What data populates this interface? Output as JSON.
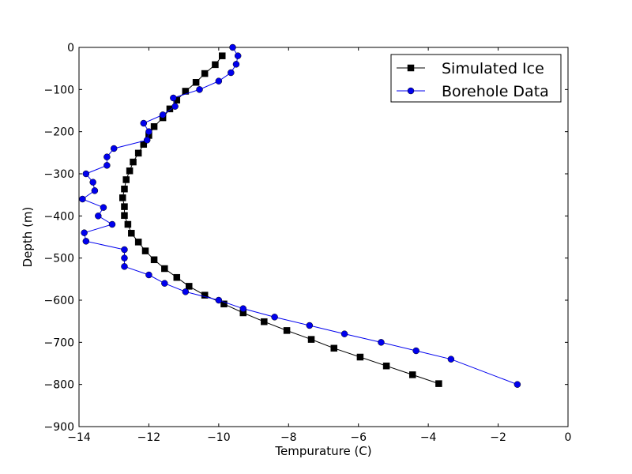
{
  "chart_data": {
    "type": "line",
    "xlabel": "Tempurature (C)",
    "ylabel": "Depth (m)",
    "xlim": [
      -14,
      0
    ],
    "ylim": [
      -900,
      0
    ],
    "x_ticks": [
      -14,
      -12,
      -10,
      -8,
      -6,
      -4,
      -2,
      0
    ],
    "y_ticks": [
      0,
      -100,
      -200,
      -300,
      -400,
      -500,
      -600,
      -700,
      -800,
      -900
    ],
    "x_tick_labels": [
      "−14",
      "−12",
      "−10",
      "−8",
      "−6",
      "−4",
      "−2",
      "0"
    ],
    "y_tick_labels": [
      "0",
      "−100",
      "−200",
      "−300",
      "−400",
      "−500",
      "−600",
      "−700",
      "−800",
      "−900"
    ],
    "grid": false,
    "legend_position": "top-right",
    "series": [
      {
        "name": "Simulated Ice",
        "color": "#000000",
        "marker": "square",
        "points": [
          [
            -9.9,
            -20
          ],
          [
            -10.1,
            -41
          ],
          [
            -10.4,
            -62
          ],
          [
            -10.65,
            -83
          ],
          [
            -10.95,
            -104
          ],
          [
            -11.2,
            -125
          ],
          [
            -11.4,
            -146
          ],
          [
            -11.6,
            -167
          ],
          [
            -11.85,
            -188
          ],
          [
            -12.0,
            -209
          ],
          [
            -12.15,
            -230
          ],
          [
            -12.3,
            -251
          ],
          [
            -12.45,
            -272
          ],
          [
            -12.55,
            -293
          ],
          [
            -12.65,
            -314
          ],
          [
            -12.7,
            -336
          ],
          [
            -12.75,
            -357
          ],
          [
            -12.7,
            -378
          ],
          [
            -12.7,
            -399
          ],
          [
            -12.6,
            -420
          ],
          [
            -12.5,
            -441
          ],
          [
            -12.3,
            -462
          ],
          [
            -12.1,
            -483
          ],
          [
            -11.85,
            -504
          ],
          [
            -11.55,
            -525
          ],
          [
            -11.2,
            -546
          ],
          [
            -10.85,
            -567
          ],
          [
            -10.4,
            -588
          ],
          [
            -9.85,
            -609
          ],
          [
            -9.3,
            -630
          ],
          [
            -8.7,
            -651
          ],
          [
            -8.05,
            -672
          ],
          [
            -7.35,
            -693
          ],
          [
            -6.7,
            -714
          ],
          [
            -5.95,
            -735
          ],
          [
            -5.2,
            -756
          ],
          [
            -4.45,
            -777
          ],
          [
            -3.7,
            -798
          ]
        ]
      },
      {
        "name": "Borehole Data",
        "color": "#0000ee",
        "marker": "circle",
        "points": [
          [
            -9.6,
            0
          ],
          [
            -9.45,
            -20
          ],
          [
            -9.5,
            -40
          ],
          [
            -9.65,
            -60
          ],
          [
            -10.0,
            -80
          ],
          [
            -10.55,
            -100
          ],
          [
            -11.3,
            -120
          ],
          [
            -11.25,
            -140
          ],
          [
            -11.6,
            -160
          ],
          [
            -12.15,
            -180
          ],
          [
            -12.0,
            -200
          ],
          [
            -12.05,
            -220
          ],
          [
            -13.0,
            -240
          ],
          [
            -13.2,
            -260
          ],
          [
            -13.2,
            -280
          ],
          [
            -13.8,
            -300
          ],
          [
            -13.6,
            -320
          ],
          [
            -13.55,
            -340
          ],
          [
            -13.9,
            -360
          ],
          [
            -13.3,
            -380
          ],
          [
            -13.45,
            -400
          ],
          [
            -13.05,
            -420
          ],
          [
            -13.85,
            -440
          ],
          [
            -13.8,
            -460
          ],
          [
            -12.7,
            -480
          ],
          [
            -12.7,
            -500
          ],
          [
            -12.7,
            -520
          ],
          [
            -12.0,
            -540
          ],
          [
            -11.55,
            -560
          ],
          [
            -10.95,
            -580
          ],
          [
            -10.0,
            -600
          ],
          [
            -9.3,
            -620
          ],
          [
            -8.4,
            -640
          ],
          [
            -7.4,
            -660
          ],
          [
            -6.4,
            -680
          ],
          [
            -5.35,
            -700
          ],
          [
            -4.35,
            -720
          ],
          [
            -3.35,
            -740
          ],
          [
            -1.45,
            -800
          ]
        ]
      }
    ]
  }
}
